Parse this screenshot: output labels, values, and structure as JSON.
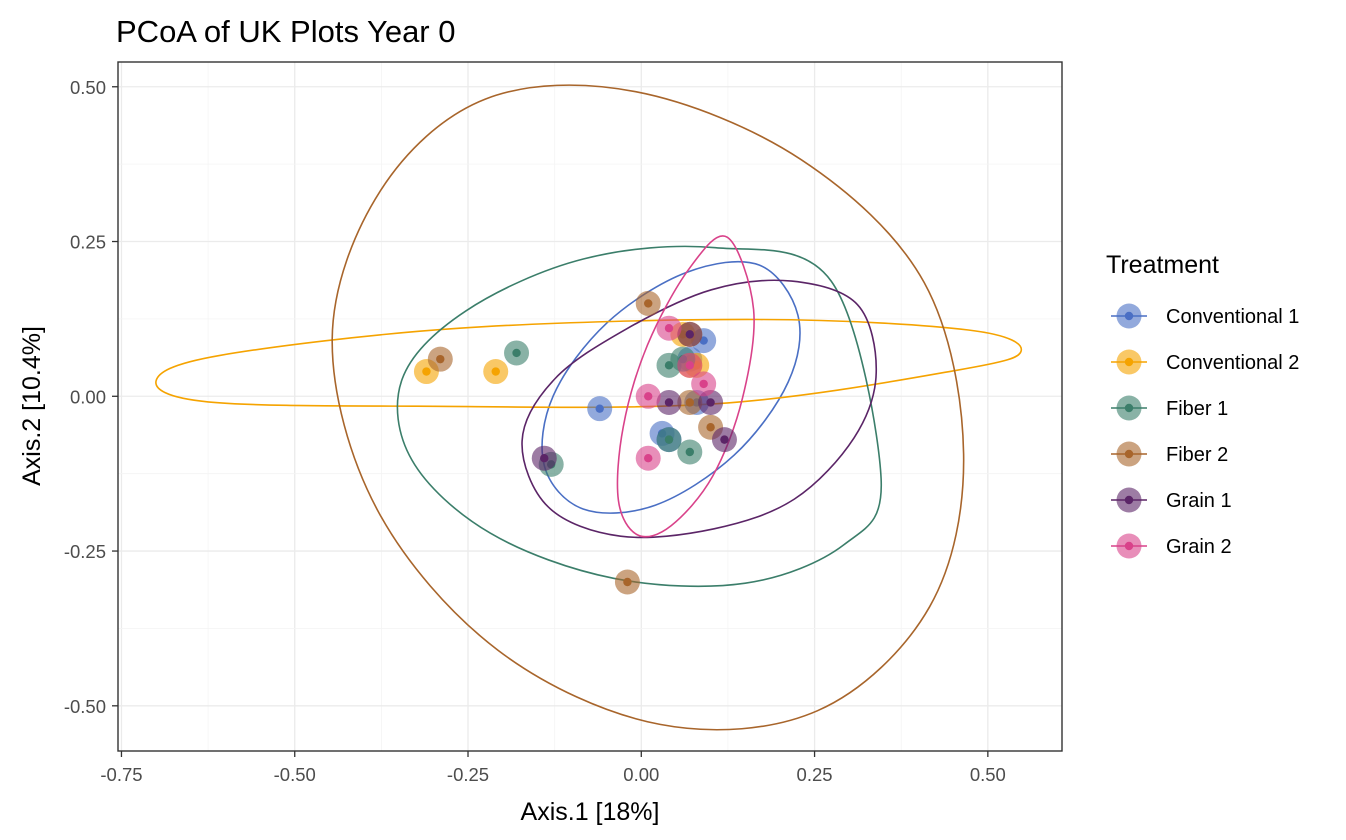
{
  "chart_data": {
    "type": "scatter",
    "title": "PCoA of UK Plots Year 0",
    "xlabel": "Axis.1   [18%]",
    "ylabel": "Axis.2   [10.4%]",
    "xlim": [
      -0.755,
      0.607
    ],
    "ylim": [
      -0.573,
      0.54
    ],
    "x_ticks": [
      -0.75,
      -0.5,
      -0.25,
      0.0,
      0.25,
      0.5
    ],
    "x_tick_labels": [
      "-0.75",
      "-0.50",
      "-0.25",
      "0.00",
      "0.25",
      "0.50"
    ],
    "y_ticks": [
      0.5,
      0.25,
      0.0,
      -0.25,
      -0.5
    ],
    "y_tick_labels": [
      "0.50",
      "0.25",
      "0.00",
      "-0.25",
      "-0.50"
    ],
    "grid": true,
    "legend": {
      "title": "Treatment",
      "position": "right"
    },
    "series": [
      {
        "name": "Conventional 1",
        "color": "#4A6FC4",
        "points": [
          [
            0.09,
            0.09
          ],
          [
            0.03,
            -0.06
          ],
          [
            -0.06,
            -0.02
          ],
          [
            0.04,
            -0.07
          ],
          [
            0.08,
            -0.01
          ],
          [
            0.07,
            0.06
          ]
        ],
        "ellipse": [
          [
            0.17,
            0.212
          ],
          [
            0.226,
            0.131
          ],
          [
            0.212,
            0.023
          ],
          [
            0.134,
            -0.095
          ],
          [
            0.02,
            -0.176
          ],
          [
            -0.084,
            -0.182
          ],
          [
            -0.14,
            -0.112
          ],
          [
            -0.127,
            0.001
          ],
          [
            -0.049,
            0.119
          ],
          [
            0.065,
            0.2
          ],
          [
            0.17,
            0.212
          ]
        ]
      },
      {
        "name": "Conventional 2",
        "color": "#F5A300",
        "points": [
          [
            -0.31,
            0.04
          ],
          [
            -0.21,
            0.04
          ],
          [
            0.06,
            0.1
          ],
          [
            0.07,
            0.1
          ],
          [
            0.07,
            0.05
          ],
          [
            0.08,
            0.05
          ]
        ],
        "ellipse": [
          [
            0.548,
            0.073
          ],
          [
            0.472,
            0.107
          ],
          [
            0.171,
            0.124
          ],
          [
            -0.262,
            0.11
          ],
          [
            -0.608,
            0.066
          ],
          [
            -0.7,
            0.025
          ],
          [
            -0.625,
            -0.009
          ],
          [
            -0.324,
            -0.016
          ],
          [
            0.109,
            -0.012
          ],
          [
            0.455,
            0.042
          ],
          [
            0.548,
            0.073
          ]
        ]
      },
      {
        "name": "Fiber 1",
        "color": "#3B7E6A",
        "points": [
          [
            -0.18,
            0.07
          ],
          [
            0.04,
            0.05
          ],
          [
            0.04,
            -0.07
          ],
          [
            0.07,
            -0.09
          ],
          [
            -0.13,
            -0.11
          ],
          [
            0.06,
            0.06
          ]
        ],
        "ellipse": [
          [
            0.346,
            -0.133
          ],
          [
            0.292,
            -0.24
          ],
          [
            0.15,
            -0.302
          ],
          [
            -0.04,
            -0.294
          ],
          [
            -0.218,
            -0.221
          ],
          [
            -0.331,
            -0.103
          ],
          [
            -0.345,
            0.028
          ],
          [
            -0.253,
            0.138
          ],
          [
            -0.083,
            0.222
          ],
          [
            0.107,
            0.24
          ],
          [
            0.274,
            0.186
          ],
          [
            0.346,
            -0.133
          ]
        ]
      },
      {
        "name": "Fiber 2",
        "color": "#A8652B",
        "points": [
          [
            -0.29,
            0.06
          ],
          [
            0.01,
            0.15
          ],
          [
            0.07,
            -0.01
          ],
          [
            0.1,
            -0.05
          ],
          [
            -0.02,
            -0.3
          ]
        ],
        "ellipse": [
          [
            0.465,
            -0.093
          ],
          [
            0.416,
            -0.34
          ],
          [
            0.254,
            -0.508
          ],
          [
            0.027,
            -0.53
          ],
          [
            -0.207,
            -0.41
          ],
          [
            -0.381,
            -0.183
          ],
          [
            -0.446,
            0.092
          ],
          [
            -0.377,
            0.331
          ],
          [
            -0.225,
            0.48
          ],
          [
            -0.008,
            0.492
          ],
          [
            0.231,
            0.382
          ],
          [
            0.408,
            0.184
          ],
          [
            0.465,
            -0.093
          ]
        ]
      },
      {
        "name": "Grain 1",
        "color": "#5B2567",
        "points": [
          [
            0.04,
            -0.01
          ],
          [
            0.1,
            -0.01
          ],
          [
            0.12,
            -0.07
          ],
          [
            -0.14,
            -0.1
          ],
          [
            0.07,
            0.1
          ]
        ],
        "ellipse": [
          [
            0.339,
            0.038
          ],
          [
            0.307,
            -0.067
          ],
          [
            0.221,
            -0.166
          ],
          [
            0.105,
            -0.214
          ],
          [
            -0.03,
            -0.226
          ],
          [
            -0.134,
            -0.179
          ],
          [
            -0.172,
            -0.072
          ],
          [
            -0.125,
            0.028
          ],
          [
            -0.021,
            0.109
          ],
          [
            0.101,
            0.172
          ],
          [
            0.217,
            0.186
          ],
          [
            0.312,
            0.148
          ],
          [
            0.339,
            0.038
          ]
        ]
      },
      {
        "name": "Grain 2",
        "color": "#D9428A",
        "points": [
          [
            0.04,
            0.11
          ],
          [
            0.07,
            0.05
          ],
          [
            0.09,
            0.02
          ],
          [
            0.01,
            -0.1
          ],
          [
            0.01,
            0.0
          ]
        ],
        "ellipse": [
          [
            0.162,
            0.14
          ],
          [
            0.146,
            -0.003
          ],
          [
            0.103,
            -0.129
          ],
          [
            0.043,
            -0.209
          ],
          [
            -0.005,
            -0.224
          ],
          [
            -0.033,
            -0.168
          ],
          [
            -0.026,
            -0.049
          ],
          [
            0.009,
            0.083
          ],
          [
            0.069,
            0.206
          ],
          [
            0.124,
            0.257
          ],
          [
            0.162,
            0.14
          ]
        ]
      }
    ]
  }
}
